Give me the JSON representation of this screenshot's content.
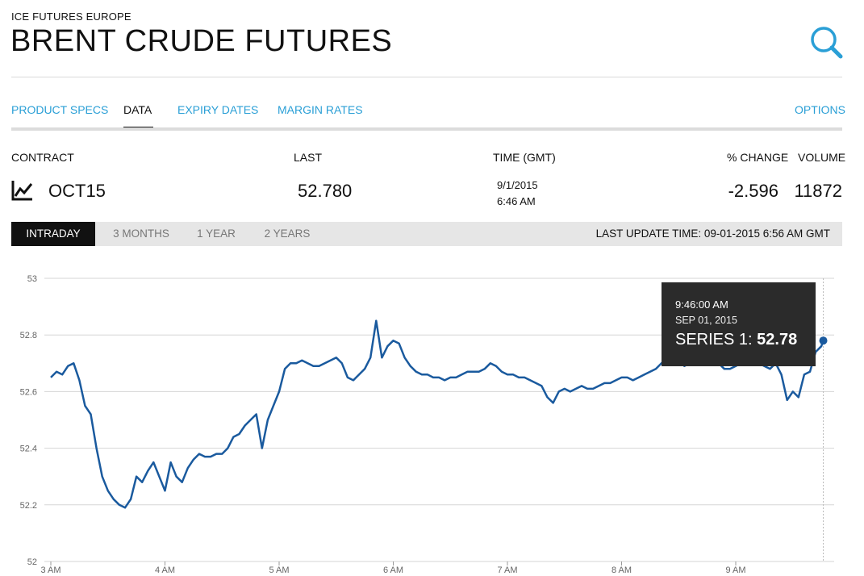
{
  "header": {
    "exchange": "ICE FUTURES EUROPE",
    "title": "BRENT CRUDE FUTURES",
    "search_icon": "search-icon"
  },
  "tabs": [
    {
      "label": "PRODUCT SPECS",
      "active": false
    },
    {
      "label": "DATA",
      "active": true
    },
    {
      "label": "EXPIRY DATES",
      "active": false
    },
    {
      "label": "MARGIN RATES",
      "active": false
    }
  ],
  "options_label": "OPTIONS",
  "table": {
    "headers": {
      "contract": "CONTRACT",
      "last": "LAST",
      "time": "TIME (GMT)",
      "change": "% CHANGE",
      "volume": "VOLUME"
    },
    "row": {
      "contract": "OCT15",
      "last": "52.780",
      "date": "9/1/2015",
      "time": "6:46 AM",
      "change": "-2.596",
      "volume": "11872"
    }
  },
  "ranges": [
    {
      "label": "INTRADAY",
      "active": true
    },
    {
      "label": "3 MONTHS",
      "active": false
    },
    {
      "label": "1 YEAR",
      "active": false
    },
    {
      "label": "2 YEARS",
      "active": false
    }
  ],
  "last_update": "LAST UPDATE TIME: 09-01-2015 6:56 AM GMT",
  "tooltip": {
    "time": "9:46:00 AM",
    "date": "SEP 01, 2015",
    "series_label": "SERIES 1:",
    "series_value": "52.78"
  },
  "colors": {
    "line": "#1a5a9e",
    "link": "#2a9fd6",
    "tooltip_bg": "#2b2b2b"
  },
  "chart_data": {
    "type": "line",
    "ylim": [
      52,
      53
    ],
    "yticks": [
      "53",
      "52.8",
      "52.6",
      "52.4",
      "52.2",
      "52"
    ],
    "xticks": [
      "3 AM",
      "4 AM",
      "5 AM",
      "6 AM",
      "7 AM",
      "8 AM",
      "9 AM"
    ],
    "x_hours": [
      3,
      3.05,
      3.1,
      3.15,
      3.2,
      3.25,
      3.3,
      3.35,
      3.4,
      3.45,
      3.5,
      3.55,
      3.6,
      3.65,
      3.7,
      3.75,
      3.8,
      3.85,
      3.9,
      3.95,
      4,
      4.05,
      4.1,
      4.15,
      4.2,
      4.25,
      4.3,
      4.35,
      4.4,
      4.45,
      4.5,
      4.55,
      4.6,
      4.65,
      4.7,
      4.75,
      4.8,
      4.85,
      4.9,
      4.95,
      5,
      5.05,
      5.1,
      5.15,
      5.2,
      5.25,
      5.3,
      5.35,
      5.4,
      5.45,
      5.5,
      5.55,
      5.6,
      5.65,
      5.7,
      5.75,
      5.8,
      5.85,
      5.9,
      5.95,
      6,
      6.05,
      6.1,
      6.15,
      6.2,
      6.25,
      6.3,
      6.35,
      6.4,
      6.45,
      6.5,
      6.55,
      6.6,
      6.65,
      6.7,
      6.75,
      6.8,
      6.85,
      6.9,
      6.95,
      7,
      7.05,
      7.1,
      7.15,
      7.2,
      7.25,
      7.3,
      7.35,
      7.4,
      7.45,
      7.5,
      7.55,
      7.6,
      7.65,
      7.7,
      7.75,
      7.8,
      7.85,
      7.9,
      7.95,
      8,
      8.05,
      8.1,
      8.15,
      8.2,
      8.25,
      8.3,
      8.35,
      8.4,
      8.45,
      8.5,
      8.55,
      8.6,
      8.65,
      8.7,
      8.75,
      8.8,
      8.85,
      8.9,
      8.95,
      9,
      9.05,
      9.1,
      9.15,
      9.2,
      9.25,
      9.3,
      9.35,
      9.4,
      9.45,
      9.5,
      9.55,
      9.6,
      9.65,
      9.7,
      9.75,
      9.767
    ],
    "values": [
      52.65,
      52.67,
      52.66,
      52.69,
      52.7,
      52.64,
      52.55,
      52.52,
      52.4,
      52.3,
      52.25,
      52.22,
      52.2,
      52.19,
      52.22,
      52.3,
      52.28,
      52.32,
      52.35,
      52.3,
      52.25,
      52.35,
      52.3,
      52.28,
      52.33,
      52.36,
      52.38,
      52.37,
      52.37,
      52.38,
      52.38,
      52.4,
      52.44,
      52.45,
      52.48,
      52.5,
      52.52,
      52.4,
      52.5,
      52.55,
      52.6,
      52.68,
      52.7,
      52.7,
      52.71,
      52.7,
      52.69,
      52.69,
      52.7,
      52.71,
      52.72,
      52.7,
      52.65,
      52.64,
      52.66,
      52.68,
      52.72,
      52.85,
      52.72,
      52.76,
      52.78,
      52.77,
      52.72,
      52.69,
      52.67,
      52.66,
      52.66,
      52.65,
      52.65,
      52.64,
      52.65,
      52.65,
      52.66,
      52.67,
      52.67,
      52.67,
      52.68,
      52.7,
      52.69,
      52.67,
      52.66,
      52.66,
      52.65,
      52.65,
      52.64,
      52.63,
      52.62,
      52.58,
      52.56,
      52.6,
      52.61,
      52.6,
      52.61,
      52.62,
      52.61,
      52.61,
      52.62,
      52.63,
      52.63,
      52.64,
      52.65,
      52.65,
      52.64,
      52.65,
      52.66,
      52.67,
      52.68,
      52.7,
      52.72,
      52.7,
      52.71,
      52.69,
      52.7,
      52.72,
      52.72,
      52.71,
      52.7,
      52.7,
      52.68,
      52.68,
      52.69,
      52.7,
      52.72,
      52.71,
      52.7,
      52.69,
      52.68,
      52.7,
      52.66,
      52.57,
      52.6,
      52.58,
      52.66,
      52.67,
      52.74,
      52.76,
      52.78
    ]
  }
}
